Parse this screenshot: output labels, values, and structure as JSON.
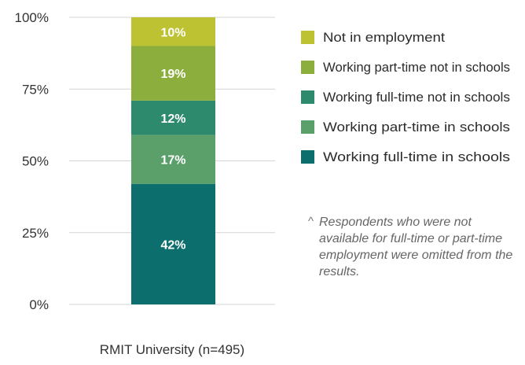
{
  "chart_data": {
    "type": "bar",
    "stacked": true,
    "categories": [
      "RMIT University (n=495)"
    ],
    "series": [
      {
        "name": "Working full-time in schools",
        "values": [
          42
        ],
        "color": "#0d6e6e"
      },
      {
        "name": "Working part-time in schools",
        "values": [
          17
        ],
        "color": "#5b9f6a"
      },
      {
        "name": "Working full-time not in schools",
        "values": [
          12
        ],
        "color": "#2e8a6c"
      },
      {
        "name": "Working part-time not in schools",
        "values": [
          19
        ],
        "color": "#8cae3c"
      },
      {
        "name": "Not in employment",
        "values": [
          10
        ],
        "color": "#bdc232"
      }
    ],
    "data_labels": [
      "42%",
      "17%",
      "12%",
      "19%",
      "10%"
    ],
    "xlabel": "RMIT University (n=495)",
    "ylabel": "",
    "ylim": [
      0,
      100
    ],
    "yticks": [
      "0%",
      "25%",
      "50%",
      "75%",
      "100%"
    ],
    "grid": true,
    "legend_position": "right",
    "legend_order": [
      "Not in employment",
      "Working part-time not in schools",
      "Working full-time not in schools",
      "Working part-time in schools",
      "Working full-time in schools"
    ],
    "footnote": {
      "marker": "^",
      "text": "Respondents who were not available for full-time or part-time employment were omitted from the results."
    }
  }
}
